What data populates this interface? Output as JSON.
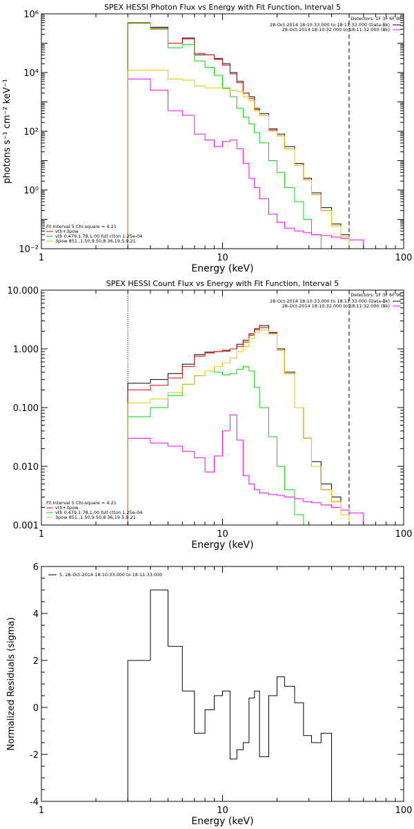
{
  "chart_data": [
    {
      "type": "line",
      "title": "SPEX HESSI Photon Flux vs Energy with Fit Function, Interval 5",
      "xlabel": "Energy (keV)",
      "ylabel": "photons s⁻¹ cm⁻² keV⁻¹",
      "xscale": "log",
      "yscale": "log",
      "xlim": [
        1,
        100
      ],
      "ylim": [
        0.01,
        1000000
      ],
      "x_ticks": [
        1,
        10,
        100
      ],
      "x_tick_labels": [
        "1",
        "10",
        "100"
      ],
      "y_ticks": [
        0.01,
        1,
        100,
        10000,
        1000000
      ],
      "y_tick_labels": [
        "10⁻²",
        "10⁰",
        "10²",
        "10⁴",
        "10⁶"
      ],
      "grid": false,
      "legend_header": "Detectors: 1F 3F 6F 9F",
      "legend": [
        {
          "label": "28-Oct-2014 18:10:33.000 to 18:11:33.000 (Data-Bk)",
          "color": "#000000"
        },
        {
          "label": "28-Oct-2014 18:10:32.000 to 18:11:32.000 (Bk)",
          "color": "#ff00ff"
        }
      ],
      "fit_header": "Fit Interval  5    Chi-square = 4.21",
      "fit_legend": [
        {
          "label": "vth+3pow",
          "color": "#ff0000"
        },
        {
          "label": "vth 0.479,1.78,1.00  full ctton 1.25e-04",
          "color": "#00cc00"
        },
        {
          "label": "3pow 851.,1.50,9.50,8.36,19.5,9.21",
          "color": "#e6c300"
        }
      ],
      "vlines": [
        {
          "x": 3,
          "color": "#e6c300",
          "style": "dotted"
        },
        {
          "x": 50,
          "color": "#000000",
          "style": "dashed"
        }
      ],
      "edges": [
        3,
        4,
        5,
        6,
        7,
        8,
        9,
        10,
        11,
        12,
        13,
        14,
        15,
        16,
        18,
        20,
        22,
        25,
        28,
        31,
        35,
        40,
        45,
        50,
        60
      ],
      "series": [
        {
          "color": "#000000",
          "values": [
            500000,
            350000,
            100000,
            150000,
            40000,
            40000,
            30000,
            20000,
            10000,
            5000,
            2000,
            1500,
            600,
            400,
            120,
            80,
            30,
            8,
            2.5,
            0.8,
            0.25,
            0.07,
            0.03,
            null
          ]
        },
        {
          "color": "#ff0000",
          "values": [
            480000,
            320000,
            100000,
            140000,
            45000,
            40000,
            28000,
            18000,
            9000,
            4500,
            2000,
            1300,
            550,
            350,
            110,
            70,
            25,
            7,
            2.2,
            0.7,
            0.2,
            0.06,
            0.025,
            null
          ]
        },
        {
          "color": "#00dd00",
          "values": [
            500000,
            300000,
            70000,
            90000,
            25000,
            15000,
            8000,
            3000,
            1500,
            600,
            300,
            180,
            90,
            40,
            10,
            4,
            1.2,
            0.4,
            0.1,
            0.03,
            null,
            null,
            null,
            null
          ]
        },
        {
          "color": "#ff00ff",
          "values": [
            6000,
            2500,
            500,
            350,
            80,
            50,
            30,
            45,
            50,
            25,
            8,
            2.5,
            1.2,
            0.5,
            0.15,
            0.08,
            0.05,
            0.04,
            0.035,
            0.03,
            0.028,
            0.025,
            0.022,
            0.02
          ]
        },
        {
          "color": "#e6c300",
          "values": [
            12000,
            12000,
            6000,
            5500,
            3500,
            3000,
            3000,
            2800,
            2500,
            2200,
            1500,
            1100,
            500,
            350,
            100,
            70,
            25,
            7,
            2.2,
            0.7,
            0.2,
            0.06,
            0.025,
            0.005
          ]
        }
      ]
    },
    {
      "type": "line",
      "title": "SPEX HESSI Count Flux vs Energy with Fit Function, Interval 5",
      "xlabel": "Energy (keV)",
      "ylabel": "",
      "xscale": "log",
      "yscale": "log",
      "xlim": [
        1,
        100
      ],
      "ylim": [
        0.001,
        10
      ],
      "x_ticks": [
        1,
        10,
        100
      ],
      "x_tick_labels": [
        "1",
        "10",
        "100"
      ],
      "y_ticks": [
        0.001,
        0.01,
        0.1,
        1,
        10
      ],
      "y_tick_labels": [
        "0.001",
        "0.010",
        "0.100",
        "1.000",
        "10.000"
      ],
      "grid": false,
      "legend_header": "Detectors: 1F 3F 6F 9F",
      "legend": [
        {
          "label": "28-Oct-2014 18:10:33.000 to 18:11:33.000 (Data-Bk)",
          "color": "#000000"
        },
        {
          "label": "28-Oct-2014 18:10:32.000 to 18:11:32.000 (Bk)",
          "color": "#ff00ff"
        }
      ],
      "fit_header": "Fit Interval  5    Chi-square = 4.21",
      "fit_legend": [
        {
          "label": "vth+3pow",
          "color": "#ff0000"
        },
        {
          "label": "vth 0.479,1.78,1.00  full ctton 1.25e-04",
          "color": "#00cc00"
        },
        {
          "label": "3pow 851.,1.50,9.50,8.36,19.5,9.21",
          "color": "#e6c300"
        }
      ],
      "vlines": [
        {
          "x": 3,
          "color": "#000000",
          "style": "dotted"
        },
        {
          "x": 50,
          "color": "#000000",
          "style": "dashed"
        }
      ],
      "edges": [
        3,
        4,
        5,
        6,
        7,
        8,
        9,
        10,
        11,
        12,
        13,
        14,
        15,
        16,
        18,
        20,
        22,
        25,
        28,
        31,
        35,
        40,
        45,
        50,
        60
      ],
      "series": [
        {
          "color": "#000000",
          "values": [
            0.26,
            0.3,
            0.38,
            0.55,
            0.8,
            0.88,
            0.9,
            0.92,
            1.0,
            1.2,
            1.4,
            1.8,
            2.2,
            2.5,
            1.9,
            1.0,
            0.4,
            0.1,
            0.03,
            0.012,
            0.005,
            0.003,
            0.0015,
            null
          ]
        },
        {
          "color": "#ff0000",
          "values": [
            0.2,
            0.24,
            0.32,
            0.5,
            0.75,
            0.85,
            0.9,
            0.95,
            1.0,
            1.1,
            1.3,
            1.7,
            2.1,
            2.3,
            1.85,
            0.95,
            0.38,
            0.1,
            0.03,
            0.01,
            0.004,
            0.0025,
            0.0015,
            null
          ]
        },
        {
          "color": "#00dd00",
          "values": [
            0.07,
            0.1,
            0.16,
            0.25,
            0.35,
            0.42,
            0.4,
            0.36,
            0.38,
            0.45,
            0.5,
            0.42,
            0.22,
            0.1,
            0.032,
            0.01,
            0.004,
            0.0015,
            0.001,
            null,
            null,
            null,
            null,
            null
          ]
        },
        {
          "color": "#ff00ff",
          "values": [
            0.03,
            0.025,
            0.022,
            0.018,
            0.014,
            0.008,
            0.015,
            0.04,
            0.075,
            0.028,
            0.007,
            0.005,
            0.004,
            0.0035,
            0.0033,
            0.0032,
            0.003,
            0.0028,
            0.0025,
            0.0024,
            0.0022,
            0.002,
            0.0018,
            0.0016
          ]
        },
        {
          "color": "#e6c300",
          "values": [
            0.12,
            0.14,
            0.18,
            0.25,
            0.35,
            0.42,
            0.5,
            0.58,
            0.7,
            0.9,
            1.1,
            1.5,
            1.9,
            2.1,
            1.8,
            0.95,
            0.38,
            0.1,
            0.03,
            0.01,
            0.004,
            0.0025,
            0.0015,
            0.001
          ]
        }
      ]
    },
    {
      "type": "line",
      "title": "",
      "xlabel": "Energy (keV)",
      "ylabel": "Normalized Residuals (sigma)",
      "xscale": "log",
      "yscale": "linear",
      "xlim": [
        1,
        100
      ],
      "ylim": [
        -4,
        6
      ],
      "x_ticks": [
        1,
        10,
        100
      ],
      "x_tick_labels": [
        "1",
        "10",
        "100"
      ],
      "y_ticks": [
        -4,
        -2,
        0,
        2,
        4,
        6
      ],
      "y_tick_labels": [
        "-4",
        "-2",
        "0",
        "2",
        "4",
        "6"
      ],
      "grid": false,
      "legend": [
        {
          "label": "5. 28-Oct-2014 18:10:33.000 to 18:11:33.000",
          "color": "#000000"
        }
      ],
      "edges": [
        3,
        4,
        5,
        6,
        7,
        8,
        9,
        10,
        11,
        12,
        13,
        14,
        15,
        16,
        18,
        20,
        22,
        25,
        28,
        31,
        35,
        40,
        45,
        50
      ],
      "series": [
        {
          "color": "#000000",
          "values": [
            2.0,
            5.0,
            2.6,
            0.7,
            -1.1,
            -0.1,
            0.5,
            0.7,
            -2.2,
            -1.8,
            -1.5,
            0.4,
            0.7,
            -2.1,
            0.5,
            1.3,
            0.9,
            0.2,
            -1.2,
            -1.5,
            -1.1,
            null,
            null
          ]
        }
      ]
    }
  ]
}
